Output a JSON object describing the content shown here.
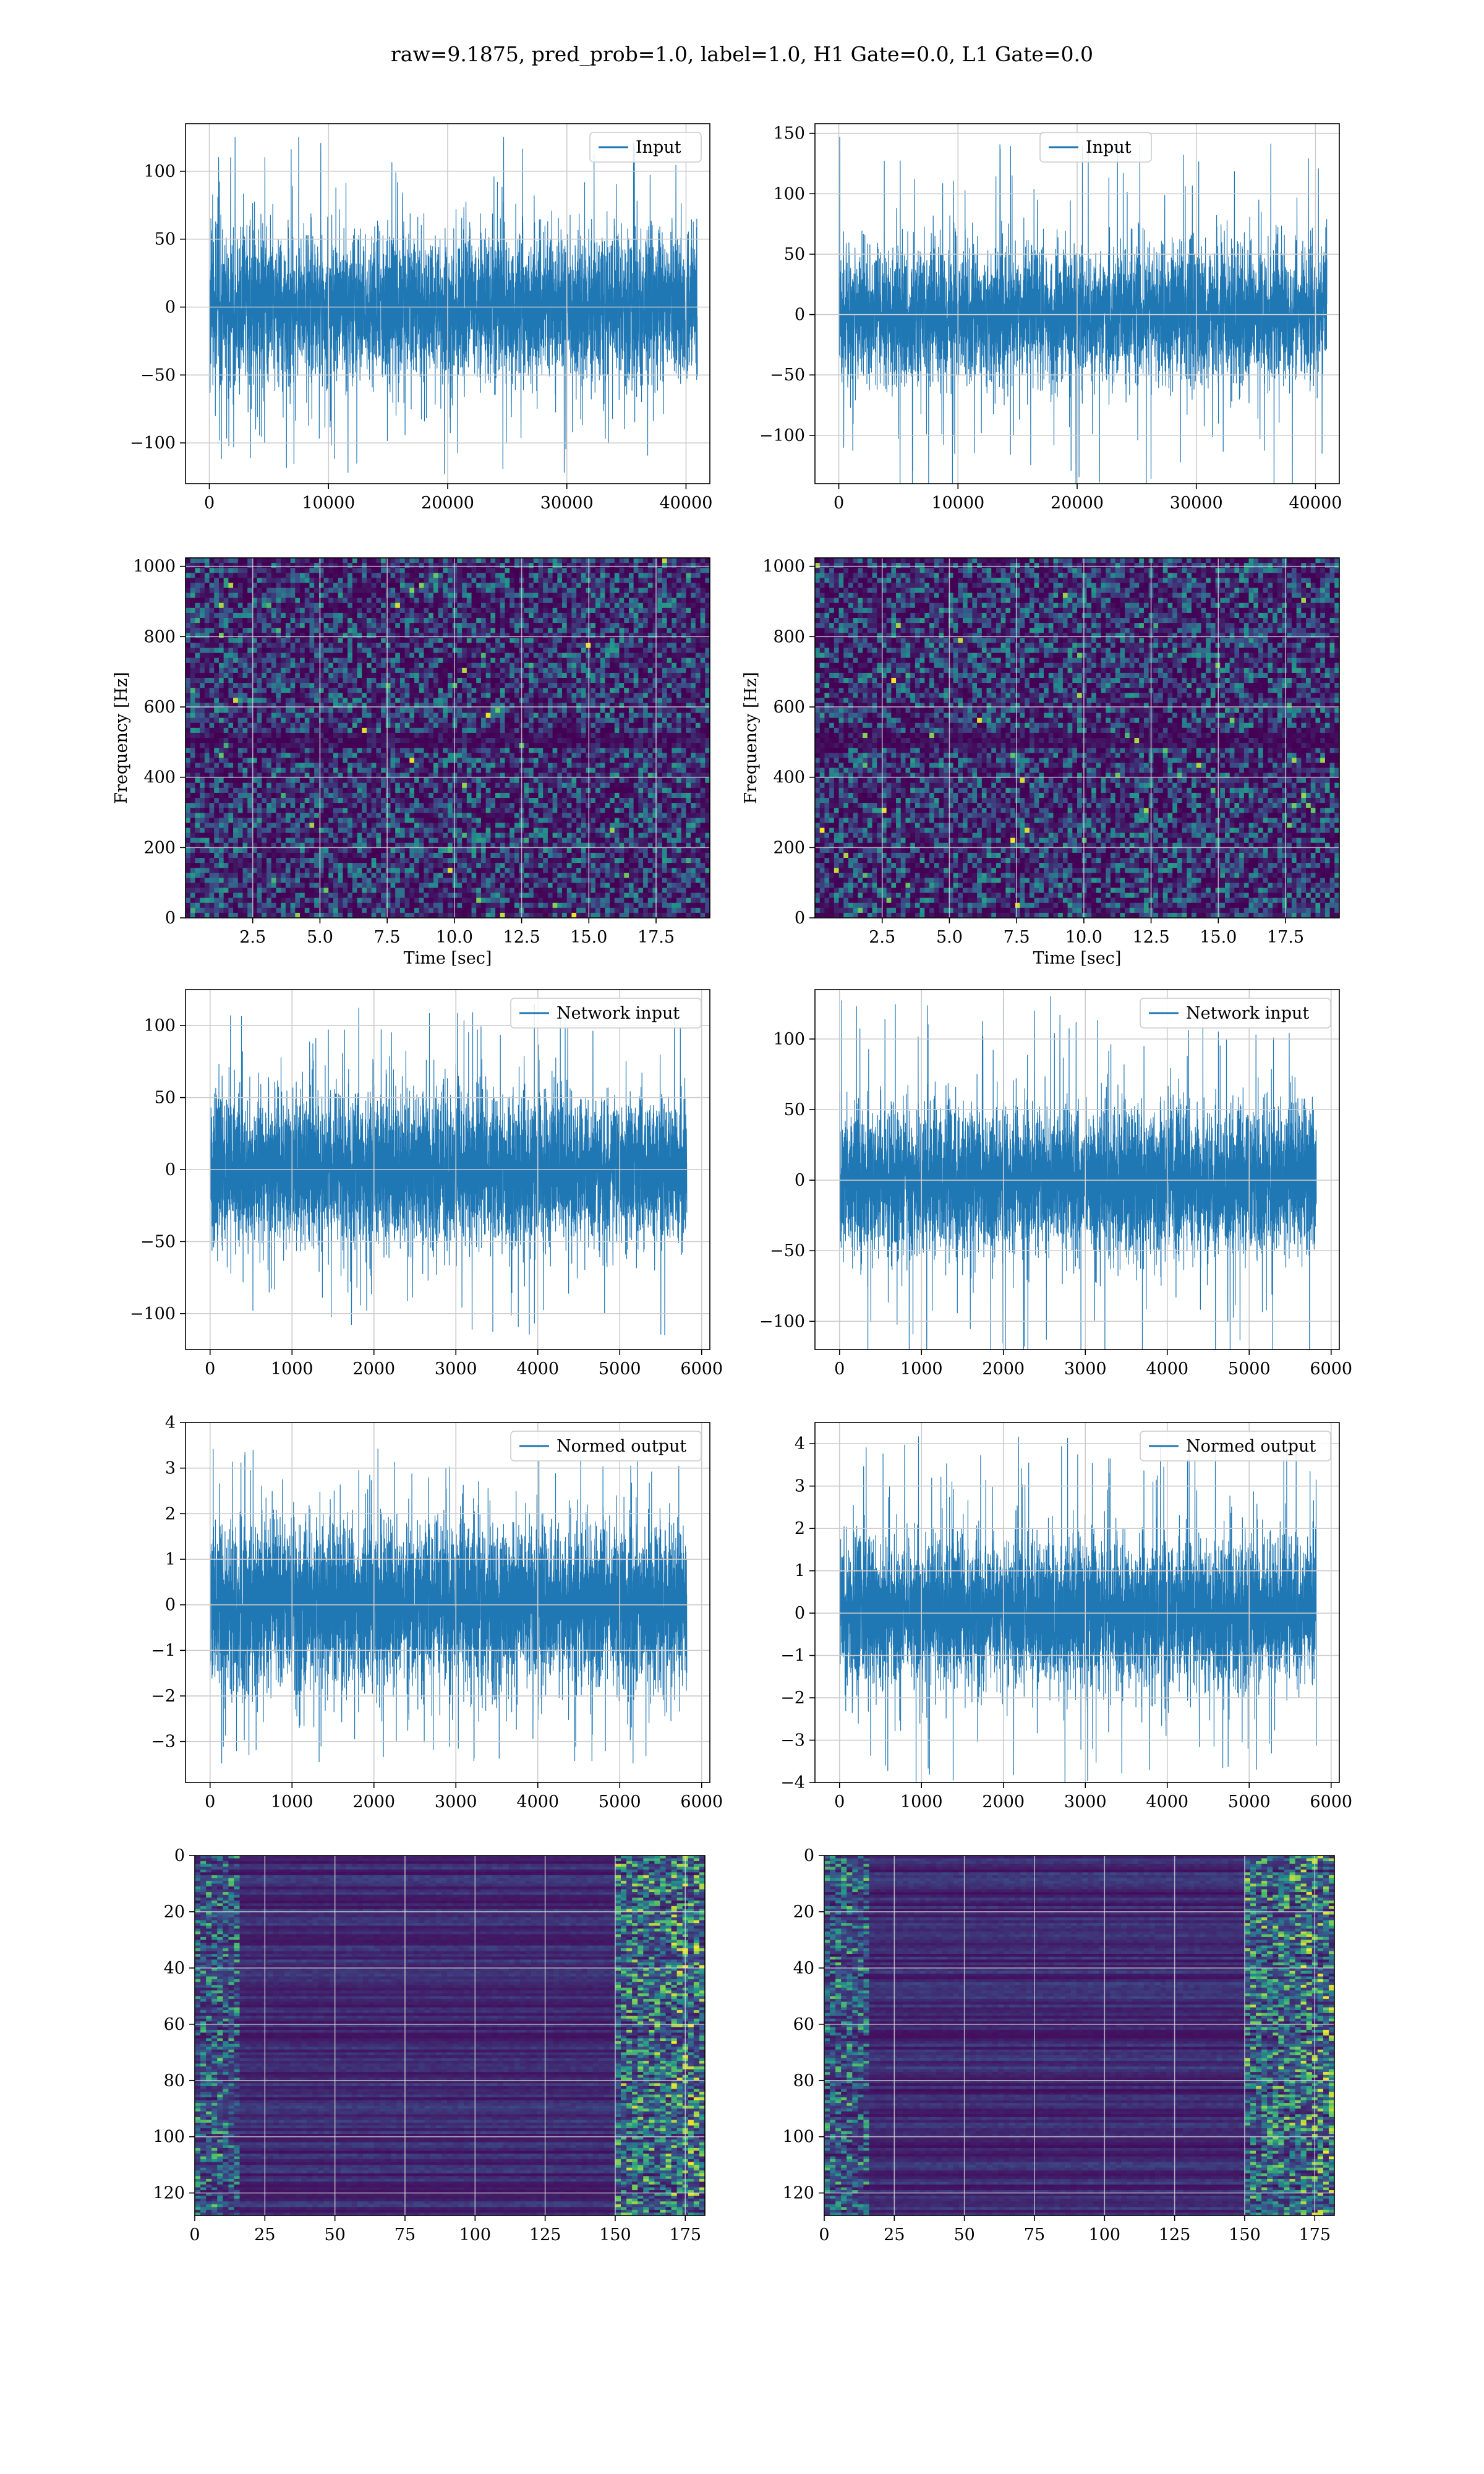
{
  "figure": {
    "title": "raw=9.1875, pred_prob=1.0, label=1.0, H1 Gate=0.0, L1 Gate=0.0"
  },
  "colors": {
    "line": "#1f77b4",
    "grid": "#cccccc",
    "viridis_dark": "#440154",
    "viridis_mid": "#21918c",
    "viridis_bright": "#fde725"
  },
  "chart_data": [
    {
      "id": "input-h1",
      "type": "line",
      "series": [
        {
          "name": "Input"
        }
      ],
      "legend": "top-right",
      "xlim": [
        -2000,
        42000
      ],
      "ylim": [
        -130,
        135
      ],
      "xticks": [
        0,
        10000,
        20000,
        30000,
        40000
      ],
      "yticks": [
        -100,
        -50,
        0,
        50,
        100
      ],
      "n": 40960,
      "amplitude": 28,
      "peak": 125,
      "grid": true
    },
    {
      "id": "input-l1",
      "type": "line",
      "series": [
        {
          "name": "Input"
        }
      ],
      "legend": "top-center",
      "xlim": [
        -2000,
        42000
      ],
      "ylim": [
        -140,
        158
      ],
      "xticks": [
        0,
        10000,
        20000,
        30000,
        40000
      ],
      "yticks": [
        -100,
        -50,
        0,
        50,
        100,
        150
      ],
      "n": 40960,
      "amplitude": 28,
      "peak": 147,
      "grid": true
    },
    {
      "id": "spec-h1",
      "type": "heatmap",
      "xlabel": "Time [sec]",
      "ylabel": "Frequency [Hz]",
      "xlim": [
        0,
        19.5
      ],
      "ylim": [
        0,
        1024
      ],
      "xticks": [
        2.5,
        5.0,
        7.5,
        10.0,
        12.5,
        15.0,
        17.5
      ],
      "yticks": [
        0,
        200,
        400,
        600,
        800,
        1000
      ],
      "colormap": "viridis",
      "grid": true
    },
    {
      "id": "spec-l1",
      "type": "heatmap",
      "xlabel": "Time [sec]",
      "ylabel": "Frequency [Hz]",
      "xlim": [
        0,
        19.5
      ],
      "ylim": [
        0,
        1024
      ],
      "xticks": [
        2.5,
        5.0,
        7.5,
        10.0,
        12.5,
        15.0,
        17.5
      ],
      "yticks": [
        0,
        200,
        400,
        600,
        800,
        1000
      ],
      "colormap": "viridis",
      "grid": true
    },
    {
      "id": "netin-h1",
      "type": "line",
      "series": [
        {
          "name": "Network input"
        }
      ],
      "legend": "top-right",
      "xlim": [
        -300,
        6100
      ],
      "ylim": [
        -125,
        125
      ],
      "xticks": [
        0,
        1000,
        2000,
        3000,
        4000,
        5000,
        6000
      ],
      "yticks": [
        -100,
        -50,
        0,
        50,
        100
      ],
      "n": 5820,
      "amplitude": 25,
      "peak": 115,
      "grid": true
    },
    {
      "id": "netin-l1",
      "type": "line",
      "series": [
        {
          "name": "Network input"
        }
      ],
      "legend": "top-right",
      "xlim": [
        -300,
        6100
      ],
      "ylim": [
        -120,
        135
      ],
      "xticks": [
        0,
        1000,
        2000,
        3000,
        4000,
        5000,
        6000
      ],
      "yticks": [
        -100,
        -50,
        0,
        50,
        100
      ],
      "n": 5820,
      "amplitude": 25,
      "peak": 131,
      "grid": true
    },
    {
      "id": "normed-h1",
      "type": "line",
      "series": [
        {
          "name": "Normed output"
        }
      ],
      "legend": "top-right",
      "xlim": [
        -300,
        6100
      ],
      "ylim": [
        -3.9,
        4.0
      ],
      "xticks": [
        0,
        1000,
        2000,
        3000,
        4000,
        5000,
        6000
      ],
      "yticks": [
        -3,
        -2,
        -1,
        0,
        1,
        2,
        3,
        4
      ],
      "n": 5820,
      "amplitude": 0.85,
      "peak": 3.5,
      "grid": true
    },
    {
      "id": "normed-l1",
      "type": "line",
      "series": [
        {
          "name": "Normed output"
        }
      ],
      "legend": "top-right",
      "xlim": [
        -300,
        6100
      ],
      "ylim": [
        -4.0,
        4.5
      ],
      "xticks": [
        0,
        1000,
        2000,
        3000,
        4000,
        5000,
        6000
      ],
      "yticks": [
        -4,
        -3,
        -2,
        -1,
        0,
        1,
        2,
        3,
        4
      ],
      "n": 5820,
      "amplitude": 0.85,
      "peak": 4.2,
      "grid": true
    },
    {
      "id": "features-h1",
      "type": "heatmap",
      "xlim": [
        0,
        182
      ],
      "ylim": [
        128,
        0
      ],
      "xticks": [
        0,
        25,
        50,
        75,
        100,
        125,
        150,
        175
      ],
      "yticks": [
        0,
        20,
        40,
        60,
        80,
        100,
        120
      ],
      "rows": 128,
      "cols": 182,
      "colormap": "viridis",
      "grid": true
    },
    {
      "id": "features-l1",
      "type": "heatmap",
      "xlim": [
        0,
        182
      ],
      "ylim": [
        128,
        0
      ],
      "xticks": [
        0,
        25,
        50,
        75,
        100,
        125,
        150,
        175
      ],
      "yticks": [
        0,
        20,
        40,
        60,
        80,
        100,
        120
      ],
      "rows": 128,
      "cols": 182,
      "colormap": "viridis",
      "grid": true
    }
  ]
}
